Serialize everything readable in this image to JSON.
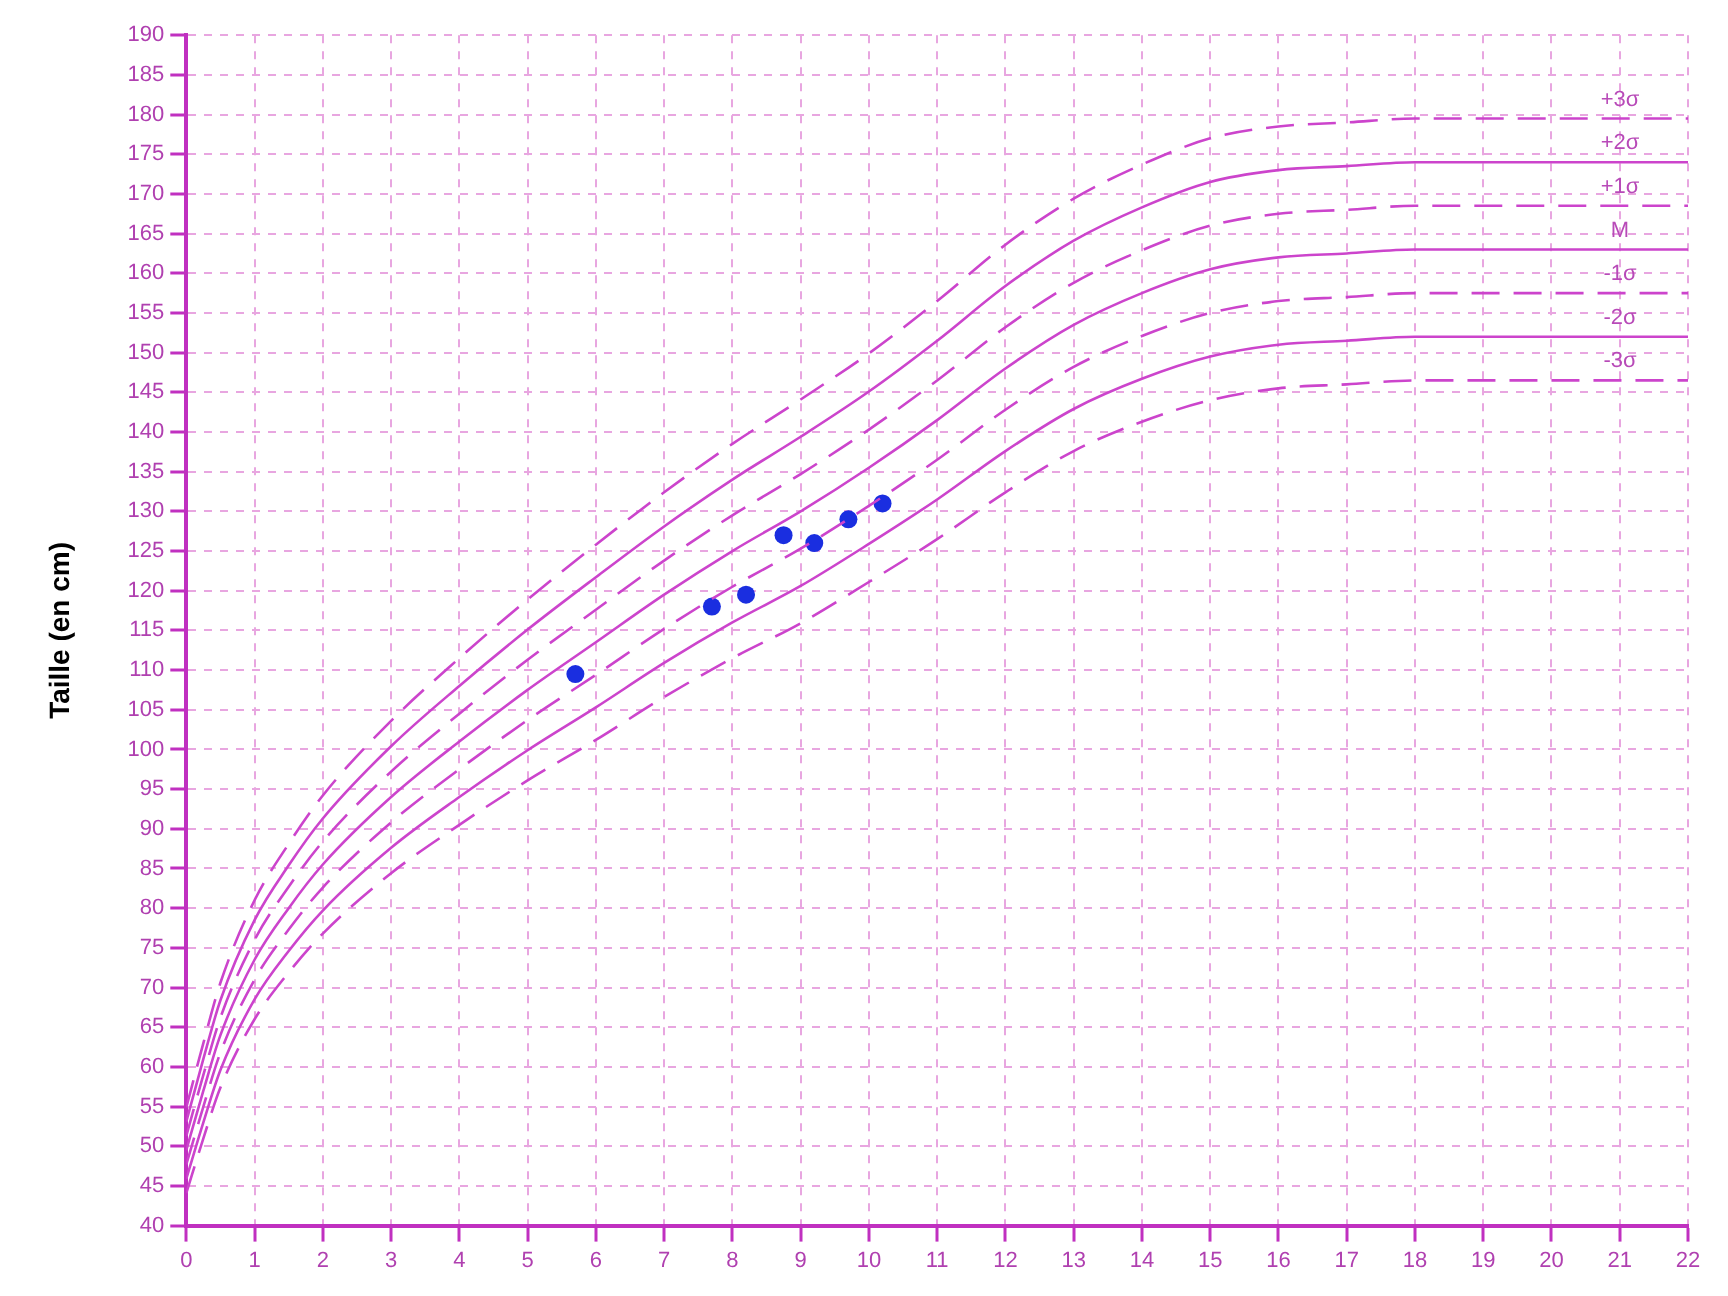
{
  "chart_data": {
    "type": "line",
    "ylabel": "Taille (en cm)",
    "xlim": [
      0,
      22
    ],
    "xticks": [
      0,
      1,
      2,
      3,
      4,
      5,
      6,
      7,
      8,
      9,
      10,
      11,
      12,
      13,
      14,
      15,
      16,
      17,
      18,
      19,
      20,
      21,
      22
    ],
    "ylim": [
      40,
      190
    ],
    "yticks": [
      40,
      45,
      50,
      55,
      60,
      65,
      70,
      75,
      80,
      85,
      90,
      95,
      100,
      105,
      110,
      115,
      120,
      125,
      130,
      135,
      140,
      145,
      150,
      155,
      160,
      165,
      170,
      175,
      180,
      185,
      190
    ],
    "grid": true,
    "legend": false,
    "marker": "none",
    "x": [
      0,
      0.25,
      0.5,
      1,
      1.5,
      2,
      3,
      4,
      5,
      6,
      7,
      8,
      9,
      10,
      11,
      12,
      13,
      14,
      15,
      16,
      17,
      18,
      20,
      22
    ],
    "series": [
      {
        "color": "#cc44cc",
        "line_style": "dashed",
        "values": [
          54.9,
          63,
          70.6,
          81,
          88.1,
          94.2,
          103.6,
          111.5,
          118.9,
          125.8,
          132.4,
          138.5,
          144.1,
          149.9,
          156.5,
          163.6,
          169.4,
          173.7,
          177,
          178.5,
          179,
          179.5,
          179.5,
          179.5
        ]
      },
      {
        "color": "#cc44cc",
        "line_style": "solid",
        "values": [
          53.1,
          61,
          68.4,
          78.5,
          85.4,
          91.3,
          100.4,
          108,
          115.1,
          121.7,
          128.1,
          134,
          139.4,
          145.1,
          151.5,
          158.4,
          164.1,
          168.3,
          171.5,
          173,
          173.5,
          174,
          174,
          174
        ]
      },
      {
        "color": "#cc44cc",
        "line_style": "dashed",
        "values": [
          51.3,
          59,
          66.2,
          76,
          82.7,
          88.4,
          97.2,
          104.5,
          111.3,
          117.6,
          123.8,
          129.5,
          134.7,
          140.3,
          146.5,
          153.2,
          158.8,
          162.9,
          166,
          167.5,
          168,
          168.5,
          168.5,
          168.5
        ]
      },
      {
        "color": "#cc44cc",
        "line_style": "solid",
        "values": [
          49.5,
          57,
          64,
          73.5,
          80,
          85.5,
          94,
          101,
          107.5,
          113.5,
          119.5,
          125,
          130,
          135.5,
          141.5,
          148,
          153.5,
          157.5,
          160.5,
          162,
          162.5,
          163,
          163,
          163
        ]
      },
      {
        "color": "#cc44cc",
        "line_style": "dashed",
        "values": [
          47.7,
          55,
          61.8,
          71,
          77.3,
          82.6,
          90.8,
          97.5,
          103.7,
          109.4,
          115.2,
          120.5,
          125.3,
          130.7,
          136.5,
          142.8,
          148.2,
          152.1,
          155,
          156.5,
          157,
          157.5,
          157.5,
          157.5
        ]
      },
      {
        "color": "#cc44cc",
        "line_style": "solid",
        "values": [
          45.9,
          53,
          59.6,
          68.5,
          74.6,
          79.7,
          87.6,
          94,
          99.9,
          105.3,
          110.9,
          116,
          120.6,
          125.9,
          131.5,
          137.6,
          142.9,
          146.7,
          149.5,
          151,
          151.5,
          152,
          152,
          152
        ]
      },
      {
        "color": "#cc44cc",
        "line_style": "dashed",
        "values": [
          44.1,
          51,
          57.4,
          66,
          71.9,
          76.8,
          84.4,
          90.5,
          96.1,
          101.2,
          106.6,
          111.5,
          115.9,
          121.1,
          126.5,
          132.4,
          137.6,
          141.3,
          144,
          145.5,
          146,
          146.5,
          146.5,
          146.5
        ]
      },
      {
        "type": "scatter",
        "color": "#1a2ee0",
        "marker": "circle",
        "x": [
          5.7,
          7.7,
          8.2,
          8.75,
          9.2,
          9.7,
          10.2
        ],
        "values": [
          109.5,
          118,
          119.5,
          127,
          126,
          129,
          131
        ]
      }
    ],
    "annotations": [
      "+3σ",
      "+2σ",
      "+1σ",
      "M",
      "-1σ",
      "-2σ",
      "-3σ"
    ]
  }
}
